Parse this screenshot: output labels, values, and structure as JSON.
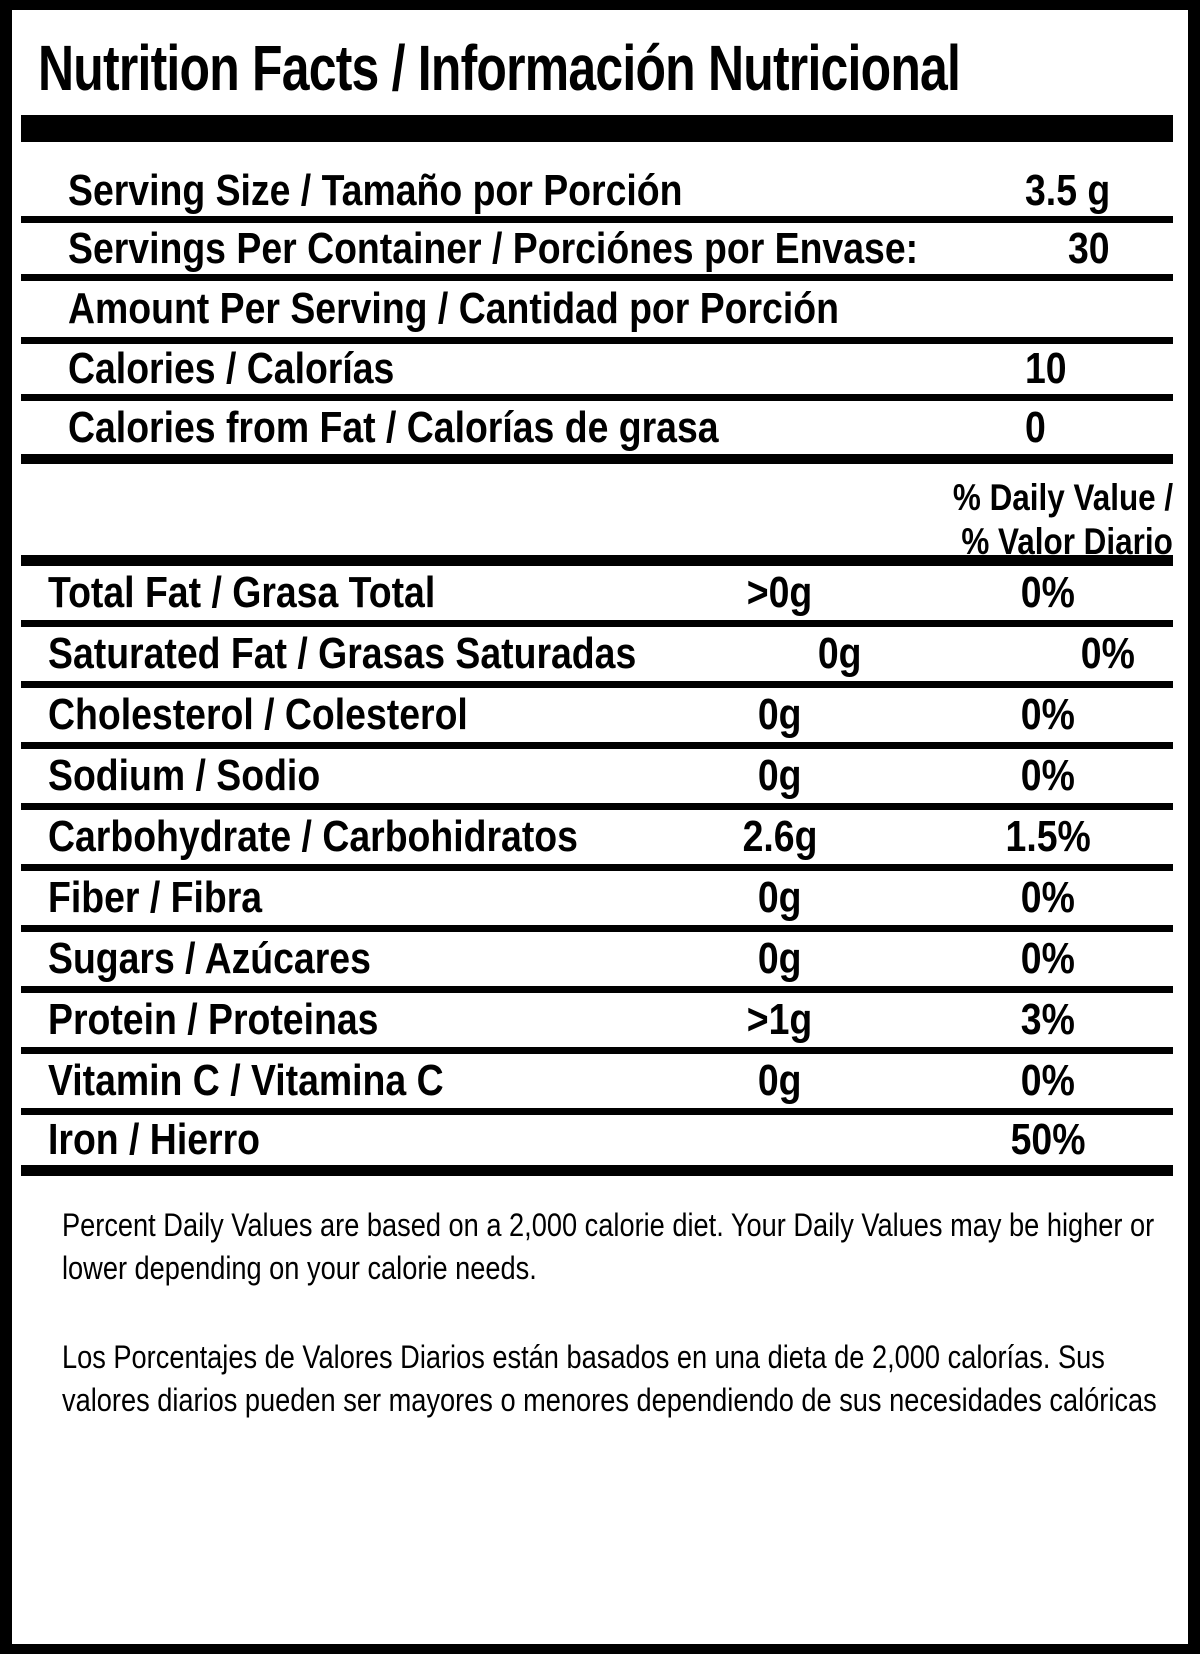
{
  "label": {
    "title": "Nutrition Facts / Información Nutricional",
    "serving_rows": [
      {
        "label": "Serving Size / Tamaño por Porción",
        "value": "3.5 g"
      },
      {
        "label": "Servings Per Container / Porciónes por Envase:",
        "value": "30"
      },
      {
        "label": "Amount Per Serving / Cantidad por Porción",
        "value": ""
      },
      {
        "label": "Calories / Calorías",
        "value": "10"
      },
      {
        "label": "Calories from Fat / Calorías de grasa",
        "value": "0"
      }
    ],
    "daily_value_heading": {
      "line1": "% Daily Value /",
      "line2": "% Valor Diario"
    },
    "nutrient_rows": [
      {
        "label": "Total Fat / Grasa Total",
        "amount": ">0g",
        "percent": "0%"
      },
      {
        "label": "Saturated Fat / Grasas Saturadas",
        "amount": "0g",
        "percent": "0%"
      },
      {
        "label": "Cholesterol / Colesterol",
        "amount": "0g",
        "percent": "0%"
      },
      {
        "label": "Sodium / Sodio",
        "amount": "0g",
        "percent": "0%"
      },
      {
        "label": "Carbohydrate / Carbohidratos",
        "amount": "2.6g",
        "percent": "1.5%"
      },
      {
        "label": "Fiber / Fibra",
        "amount": "0g",
        "percent": "0%"
      },
      {
        "label": "Sugars / Azúcares",
        "amount": "0g",
        "percent": "0%"
      },
      {
        "label": "Protein / Proteinas",
        "amount": ">1g",
        "percent": "3%"
      },
      {
        "label": "Vitamin C / Vitamina C",
        "amount": "0g",
        "percent": "0%"
      },
      {
        "label": "Iron / Hierro",
        "amount": "",
        "percent": "50%"
      }
    ],
    "footnotes": {
      "english": "Percent Daily Values are based on a 2,000 calorie diet. Your Daily Values may be higher or lower depending on your calorie needs.",
      "spanish": "Los Porcentajes de Valores Diarios están basados en una dieta de 2,000 calorías. Sus valores diarios pueden ser mayores o menores dependiendo de sus necesidades calóricas"
    },
    "colors": {
      "text": "#000000",
      "background": "#ffffff",
      "border": "#000000"
    }
  }
}
